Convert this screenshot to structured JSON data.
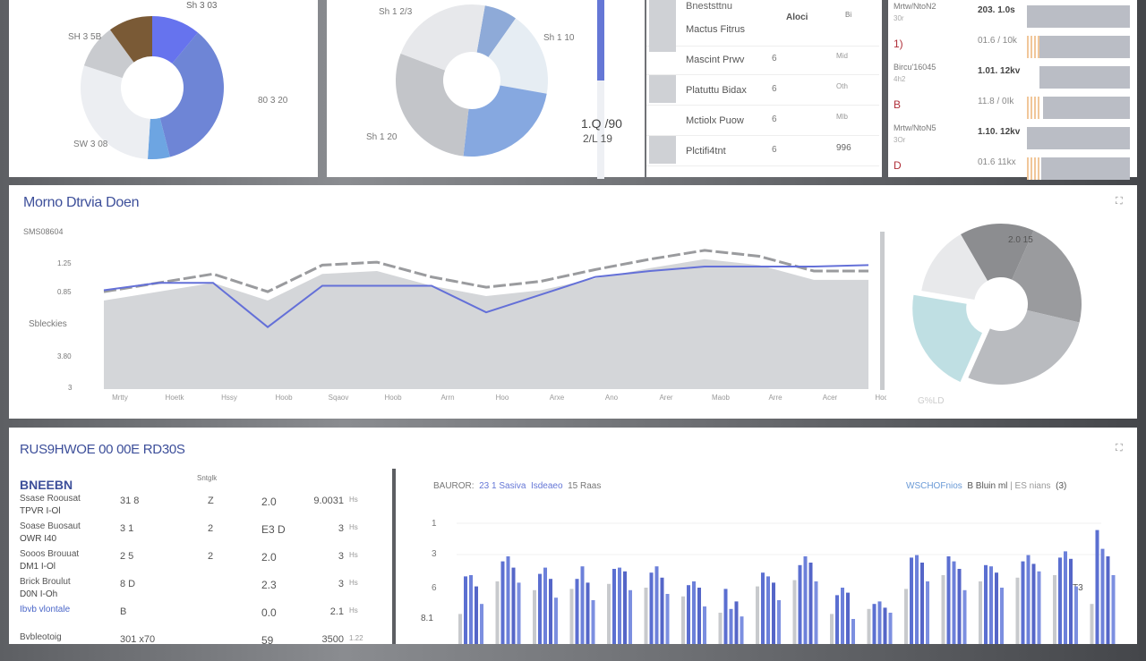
{
  "panel1": {
    "labels": [
      "Sh 3 03",
      "SH 3 5B",
      "80 3 20",
      "SW 3 08"
    ],
    "donut": {
      "values": [
        11,
        35,
        5,
        29,
        10,
        10
      ],
      "colors": [
        "#6673ee",
        "#6e85d6",
        "#6da5e2",
        "#eceef2",
        "#c9cbcf",
        "#7a5a36"
      ]
    }
  },
  "panel2": {
    "labels": [
      "Sh 1 2/3",
      "Sh 1 10",
      "Sh 1 20"
    ],
    "stat_1": "1.Q /90",
    "stat_2": "2/L 19",
    "progress_fraction": 0.45,
    "donut": {
      "values": [
        7,
        18,
        24,
        29,
        22
      ],
      "colors": [
        "#8eaad8",
        "#e6edf3",
        "#86a8e0",
        "#c3c5c9",
        "#e7e8eb"
      ]
    }
  },
  "panel3": {
    "header": "Bneststtnu",
    "columns": [
      "Aloci",
      "Bi"
    ],
    "rows": [
      {
        "name": "Mactus Fitrus",
        "num": "",
        "val": ""
      },
      {
        "name": "Mascint Prwv",
        "num": "6",
        "val": "Mid"
      },
      {
        "name": "Platuttu Bidax",
        "num": "6",
        "val": "Oth"
      },
      {
        "name": "Mctiolx Puow",
        "num": "6",
        "val": "Mlb"
      },
      {
        "name": "Plctifi4tnt",
        "num": "6",
        "val": "996"
      }
    ]
  },
  "panel4": {
    "rows": [
      {
        "label": "Mrtw/NtoN2",
        "sub": "30r",
        "value": "203. 1.0s",
        "level": 1.0
      },
      {
        "label": "1)",
        "sub": "",
        "value": "01.6 / 10k",
        "level": 0.88
      },
      {
        "label": "Bircu'16045",
        "sub": "4h2",
        "value": "1.01. 12kv",
        "level": 0.88
      },
      {
        "label": "B",
        "sub": "",
        "value": "11.8 / 0Ik",
        "level": 0.84
      },
      {
        "label": "Mrtw/NtoN5",
        "sub": "3Or",
        "value": "1.10. 12kv",
        "level": 1.0
      },
      {
        "label": "D",
        "sub": "",
        "value": "01.6 11kx",
        "level": 0.86
      }
    ]
  },
  "middle": {
    "title": "Morno Dtrvia Doen",
    "expand_icon": "expand-icon",
    "donut_label": "2.0 15",
    "donut_footer": "G%LD",
    "donut": {
      "values": [
        15,
        22,
        28,
        21,
        14
      ],
      "colors": [
        "#8c8d90",
        "#9a9b9e",
        "#b9bbbf",
        "#bfdfe3",
        "#e8e9eb"
      ]
    },
    "chart_data": {
      "type": "area",
      "ylabel_top": "SMS08604",
      "ylabel_mid": "Sbleckies",
      "y_tick_labels": [
        "1.25",
        "0.85",
        "3.80",
        "3"
      ],
      "ylim": [
        0,
        100
      ],
      "categories": [
        "Mrtty",
        "Hoetk",
        "Hssy",
        "Hoob",
        "Sqaov",
        "Hoob",
        "Arrn",
        "Hoo",
        "Arxe",
        "Ano",
        "Arer",
        "Maob",
        "Arre",
        "Acer",
        "Hocar"
      ],
      "series": [
        {
          "values": [
            66,
            72,
            78,
            66,
            84,
            86,
            76,
            69,
            73,
            81,
            88,
            94,
            90,
            80,
            80
          ],
          "color": "#9a9b9e"
        },
        {
          "values": [
            67,
            72,
            72,
            42,
            70,
            70,
            70,
            52,
            64,
            76,
            80,
            83,
            83,
            83,
            84
          ],
          "color": "#6470d8"
        }
      ]
    }
  },
  "bottom": {
    "title": "RUS9HWOE 00 00E RD30S",
    "table": {
      "heading": "BNEEBN",
      "col_header": "Sntglk",
      "rows": [
        {
          "name": "Ssase Roousat",
          "sub": "TPVR I-Ol",
          "a": "31  8",
          "b": "Z",
          "c": "2.0",
          "d": "9.0031",
          "e": "Hs"
        },
        {
          "name": "Soase Buosaut",
          "sub": "OWR I40",
          "a": "3  1",
          "b": "2",
          "c": "E3 D",
          "d": "3",
          "e": "Hs"
        },
        {
          "name": "Sooos Brouuat",
          "sub": "DM1 I-Ol",
          "a": "2  5",
          "b": "2",
          "c": "2.0",
          "d": "3",
          "e": "Hs"
        },
        {
          "name": "Brick Broulut",
          "sub": "D0N I-Oh",
          "a": "8  D",
          "b": "",
          "c": "2.3",
          "d": "3",
          "e": "Hs"
        },
        {
          "name": "Ibvb vlontale",
          "sub": "",
          "a": "B",
          "b": "",
          "c": "0.0",
          "d": "2.1",
          "e": "Hs"
        },
        {
          "name": "Bvbleotoig",
          "sub": "",
          "a": "301 x70",
          "b": "",
          "c": "59",
          "d": "3500",
          "e": "1.22"
        }
      ]
    },
    "bar_chart": {
      "legend_left": [
        "BAUROR:",
        "23 1 Sasiva",
        "Isdeaeo",
        "15 Raas"
      ],
      "legend_right": [
        "WSCHOFnios",
        "B Bluin ml",
        "ES nians",
        "(3)"
      ],
      "chart_data": {
        "type": "bar",
        "y_tick_labels": [
          "1",
          "3",
          "6",
          "8.1"
        ],
        "ylim": [
          0,
          10
        ],
        "annotation": "T3",
        "groups": [
          [
            2.4,
            5.4,
            5.5,
            4.6,
            3.2
          ],
          [
            5.0,
            6.6,
            7.0,
            6.1,
            4.9
          ],
          [
            4.3,
            5.6,
            6.1,
            5.2,
            3.7
          ],
          [
            4.4,
            5.2,
            6.2,
            4.9,
            3.5
          ],
          [
            4.8,
            6.0,
            6.1,
            5.8,
            4.3
          ],
          [
            4.5,
            5.7,
            6.2,
            5.3,
            4.0
          ],
          [
            3.8,
            4.7,
            5.0,
            4.5,
            3.0
          ],
          [
            2.5,
            4.4,
            2.8,
            3.4,
            2.2
          ],
          [
            4.6,
            5.7,
            5.4,
            4.9,
            3.5
          ],
          [
            5.1,
            6.3,
            7.0,
            6.5,
            5.0
          ],
          [
            2.4,
            3.9,
            4.5,
            4.1,
            2.0
          ],
          [
            2.8,
            3.2,
            3.4,
            2.9,
            2.5
          ],
          [
            4.4,
            6.9,
            7.1,
            6.5,
            5.0
          ],
          [
            5.5,
            7.0,
            6.6,
            6.0,
            4.3
          ],
          [
            5.0,
            6.3,
            6.2,
            5.7,
            4.5
          ],
          [
            5.3,
            6.6,
            7.1,
            6.4,
            5.8
          ],
          [
            5.5,
            6.9,
            7.4,
            6.8,
            4.6
          ],
          [
            3.2,
            9.1,
            7.6,
            7.0,
            5.5
          ]
        ],
        "colors": [
          "#c8cacd",
          "#5b6fd1",
          "#6c80da",
          "#5566c8",
          "#7c8fe0"
        ]
      }
    }
  }
}
